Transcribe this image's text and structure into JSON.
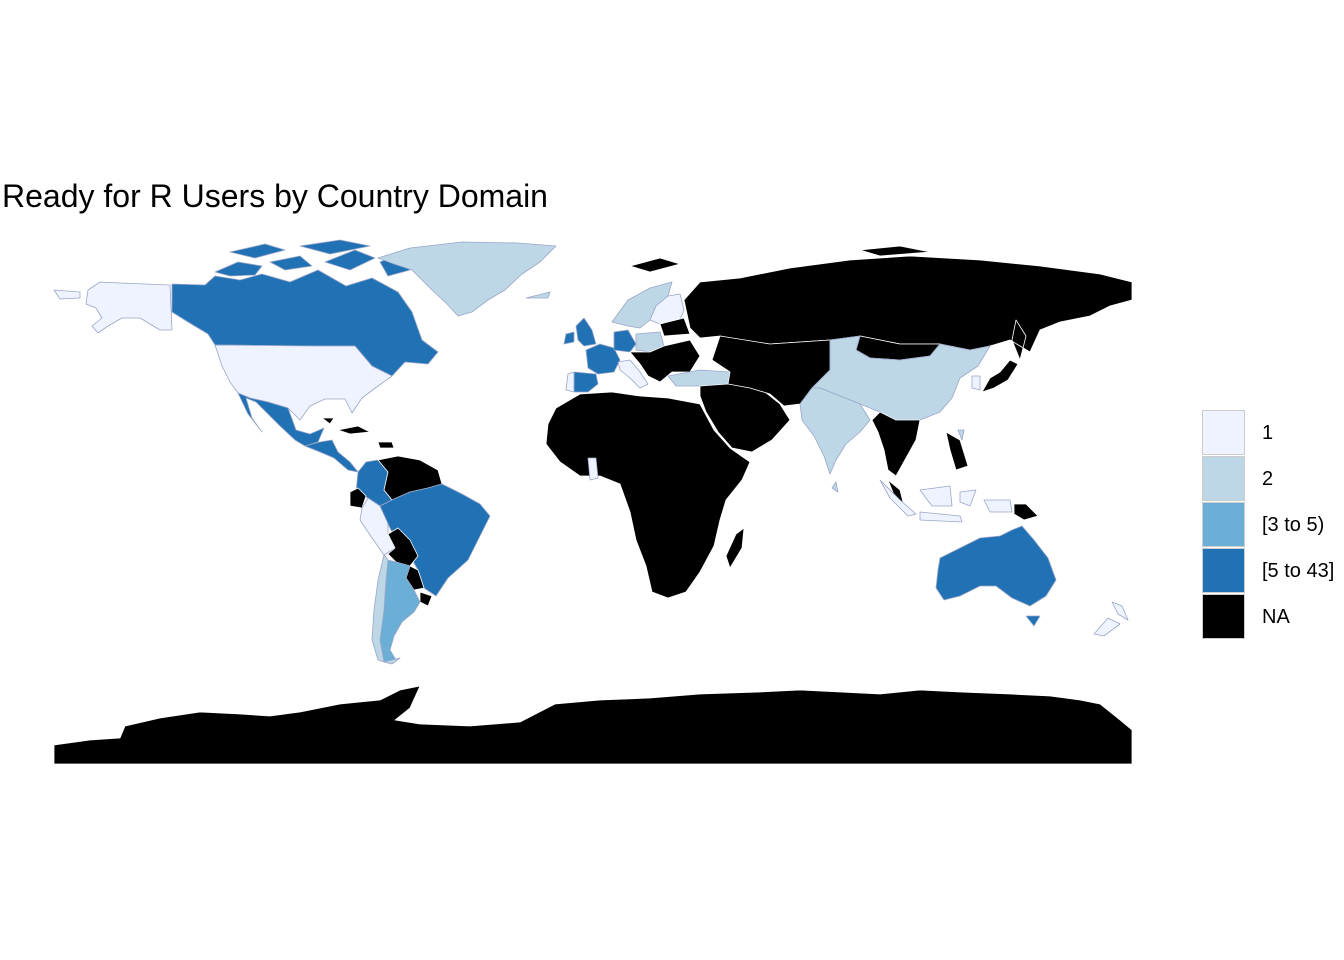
{
  "title": "Ready for R Users by Country Domain",
  "colors": {
    "c1": "#eff3ff",
    "c2": "#bdd7e7",
    "c3": "#6baed6",
    "c4": "#2171b5",
    "na": "#000000",
    "border": "#ffffff"
  },
  "legend": {
    "items": [
      {
        "label": "1",
        "color": "#eff3ff"
      },
      {
        "label": "2",
        "color": "#bdd7e7"
      },
      {
        "label": "[3 to 5)",
        "color": "#6baed6"
      },
      {
        "label": "[5 to 43]",
        "color": "#2171b5"
      },
      {
        "label": "NA",
        "color": "#000000"
      }
    ]
  },
  "map_data": {
    "type": "choropleth",
    "projection": "equirectangular",
    "regions": [
      {
        "name": "alaska",
        "class": "c1"
      },
      {
        "name": "canada",
        "class": "c4"
      },
      {
        "name": "greenland",
        "class": "c2"
      },
      {
        "name": "usa",
        "class": "c1"
      },
      {
        "name": "mexico",
        "class": "c4"
      },
      {
        "name": "central-america",
        "class": "c4"
      },
      {
        "name": "caribbean",
        "class": "na"
      },
      {
        "name": "colombia",
        "class": "c4"
      },
      {
        "name": "venezuela",
        "class": "na"
      },
      {
        "name": "ecuador",
        "class": "na"
      },
      {
        "name": "peru",
        "class": "c1"
      },
      {
        "name": "brazil",
        "class": "c4"
      },
      {
        "name": "bolivia",
        "class": "na"
      },
      {
        "name": "paraguay",
        "class": "na"
      },
      {
        "name": "uruguay",
        "class": "na"
      },
      {
        "name": "argentina",
        "class": "c3"
      },
      {
        "name": "chile",
        "class": "c2"
      },
      {
        "name": "norway-sweden",
        "class": "c2"
      },
      {
        "name": "finland",
        "class": "c1"
      },
      {
        "name": "uk-ireland",
        "class": "c4"
      },
      {
        "name": "france",
        "class": "c4"
      },
      {
        "name": "spain",
        "class": "c4"
      },
      {
        "name": "portugal",
        "class": "c1"
      },
      {
        "name": "germany",
        "class": "c4"
      },
      {
        "name": "italy",
        "class": "c1"
      },
      {
        "name": "central-europe",
        "class": "c2"
      },
      {
        "name": "eastern-europe",
        "class": "na"
      },
      {
        "name": "turkey",
        "class": "c2"
      },
      {
        "name": "russia",
        "class": "na"
      },
      {
        "name": "middle-east",
        "class": "na"
      },
      {
        "name": "africa",
        "class": "na"
      },
      {
        "name": "ghana",
        "class": "c1"
      },
      {
        "name": "madagascar",
        "class": "na"
      },
      {
        "name": "central-asia",
        "class": "na"
      },
      {
        "name": "china",
        "class": "c2"
      },
      {
        "name": "mongolia",
        "class": "na"
      },
      {
        "name": "india",
        "class": "c2"
      },
      {
        "name": "japan",
        "class": "na"
      },
      {
        "name": "korea",
        "class": "c1"
      },
      {
        "name": "southeast-asia",
        "class": "na"
      },
      {
        "name": "taiwan",
        "class": "c2"
      },
      {
        "name": "indonesia",
        "class": "c1"
      },
      {
        "name": "papua-new-guinea",
        "class": "na"
      },
      {
        "name": "australia",
        "class": "c4"
      },
      {
        "name": "new-zealand",
        "class": "c1"
      },
      {
        "name": "antarctica",
        "class": "na"
      }
    ]
  }
}
